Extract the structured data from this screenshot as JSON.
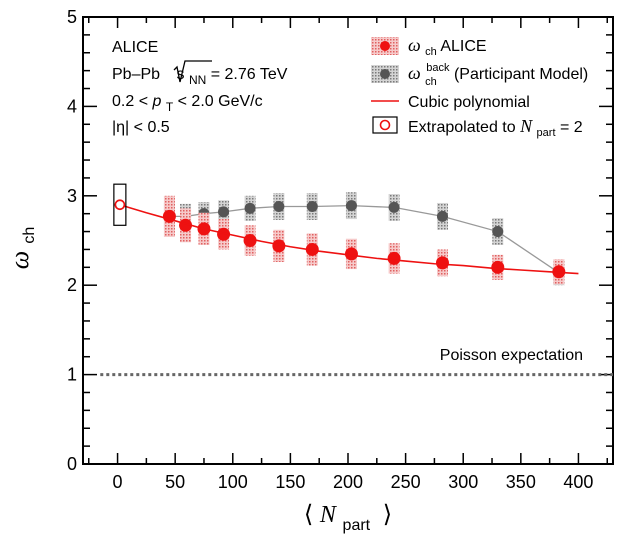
{
  "chart_data": {
    "type": "scatter",
    "xlim": [
      -30,
      430
    ],
    "ylim": [
      0,
      5
    ],
    "x_ticks": [
      "0",
      "50",
      "100",
      "150",
      "200",
      "250",
      "300",
      "350",
      "400"
    ],
    "y_ticks": [
      "0",
      "1",
      "2",
      "3",
      "4",
      "5"
    ],
    "xlabel": {
      "open": "⟨",
      "var": "N",
      "sub": "part",
      "close": "⟩"
    },
    "ylabel": {
      "var": "ω",
      "sub": "ch"
    },
    "annotations": {
      "experiment": "ALICE",
      "system_prefix": "Pb–Pb ",
      "sqrt_s": "s",
      "sqrt_s_sub": "NN",
      "energy": " = 2.76 TeV",
      "pt_left": "0.2 < ",
      "pt_var": "p",
      "pt_sub": "T",
      "pt_right": " < 2.0 GeV/c",
      "eta": "|η| < 0.5",
      "poisson": "Poisson expectation"
    },
    "legend": {
      "alice": {
        "var": "ω",
        "sub": "ch",
        "text": " ALICE"
      },
      "back": {
        "var": "ω",
        "sub": "ch",
        "sup": "back",
        "text": " (Participant Model)"
      },
      "poly": "Cubic polynomial",
      "extrap_text": "Extrapolated to ",
      "extrap_var": "N",
      "extrap_sub": "part",
      "extrap_end": " = 2"
    },
    "poisson_y": 1,
    "series": [
      {
        "name": "ALICE",
        "color": "#ee1111",
        "x": [
          45,
          59,
          75,
          92,
          115,
          140,
          169,
          203,
          240,
          282,
          330,
          383
        ],
        "y": [
          2.77,
          2.67,
          2.63,
          2.57,
          2.5,
          2.44,
          2.4,
          2.35,
          2.3,
          2.25,
          2.2,
          2.15
        ],
        "sys": [
          0.23,
          0.19,
          0.18,
          0.17,
          0.17,
          0.18,
          0.18,
          0.17,
          0.17,
          0.15,
          0.14,
          0.14
        ]
      },
      {
        "name": "(Participant Model)",
        "color": "#555555",
        "x": [
          45,
          59,
          75,
          92,
          115,
          140,
          169,
          203,
          240,
          282,
          330,
          383
        ],
        "y": [
          2.77,
          2.77,
          2.8,
          2.82,
          2.86,
          2.88,
          2.88,
          2.89,
          2.87,
          2.77,
          2.6,
          2.14
        ],
        "sys": [
          0.15,
          0.14,
          0.13,
          0.13,
          0.14,
          0.15,
          0.15,
          0.15,
          0.15,
          0.15,
          0.15,
          0.14
        ]
      }
    ],
    "fit": {
      "name": "Cubic polynomial",
      "color": "#ee1111",
      "x": [
        2,
        25,
        50,
        75,
        100,
        125,
        150,
        175,
        200,
        225,
        250,
        275,
        300,
        325,
        350,
        375,
        400
      ],
      "y": [
        2.9,
        2.81,
        2.72,
        2.63,
        2.56,
        2.49,
        2.43,
        2.38,
        2.34,
        2.3,
        2.27,
        2.24,
        2.22,
        2.19,
        2.17,
        2.15,
        2.13
      ]
    },
    "extrapolated": {
      "x": 2,
      "y": 2.9,
      "err": 0.23,
      "color": "#ee1111"
    }
  }
}
